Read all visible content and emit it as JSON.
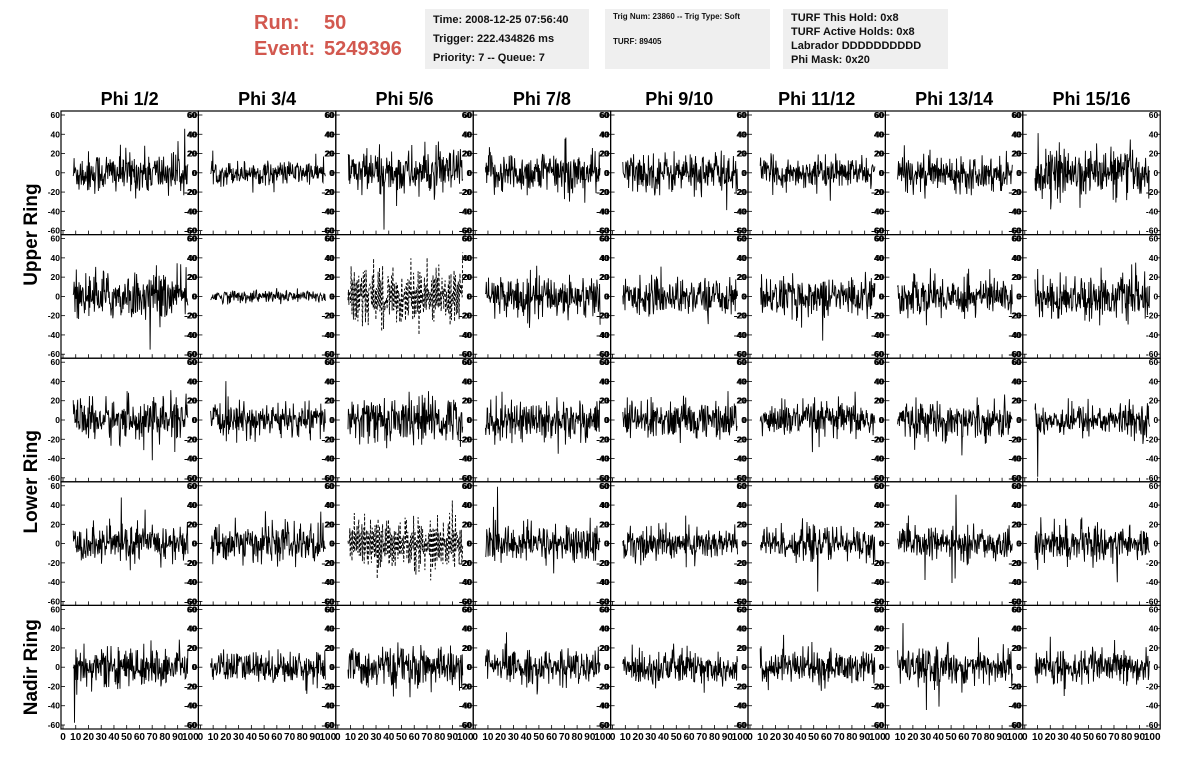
{
  "header": {
    "run_label": "Run:",
    "run_value": "50",
    "event_label": "Event:",
    "event_value": "5249396",
    "time": "Time: 2008-12-25 07:56:40",
    "trigger": "Trigger: 222.434826 ms",
    "priority": "Priority: 7 -- Queue: 7",
    "trig_num": "Trig Num: 23860 -- Trig Type: Soft",
    "turf": "TURF: 89405",
    "turf_this_hold": "TURF This Hold: 0x8",
    "turf_active_holds": "TURF Active Holds: 0x8",
    "labrador": "Labrador DDDDDDDDDD",
    "phi_mask": "Phi Mask: 0x20"
  },
  "columns": [
    "Phi 1/2",
    "Phi 3/4",
    "Phi 5/6",
    "Phi 7/8",
    "Phi 9/10",
    "Phi 11/12",
    "Phi 13/14",
    "Phi 15/16"
  ],
  "ring_labels": [
    "Upper Ring",
    "Lower Ring",
    "Nadir Ring"
  ],
  "chart_data": {
    "type": "line",
    "layout": "5 rows x 8 columns waveform grid",
    "ylim": [
      -60,
      60
    ],
    "yticks": [
      -60,
      -40,
      -20,
      0,
      20,
      40,
      60
    ],
    "xlim": [
      0,
      100
    ],
    "xticks": [
      0,
      10,
      20,
      30,
      40,
      50,
      60,
      70,
      80,
      90,
      100
    ],
    "amplitude_scale": [
      [
        1,
        0.55,
        1.1,
        1,
        0.95,
        0.7,
        0.8,
        1.1
      ],
      [
        1.1,
        0.3,
        1.6,
        1,
        0.85,
        0.9,
        0.95,
        1
      ],
      [
        1,
        0.8,
        1.1,
        1,
        0.9,
        0.85,
        0.85,
        0.75
      ],
      [
        0.9,
        0.9,
        1.4,
        0.9,
        0.8,
        0.8,
        0.75,
        0.9
      ],
      [
        0.9,
        0.75,
        0.95,
        0.8,
        0.85,
        0.8,
        0.85,
        0.8
      ]
    ],
    "dashed_panels": [
      [
        1,
        2
      ],
      [
        3,
        2
      ]
    ],
    "line_color": "#000000"
  }
}
